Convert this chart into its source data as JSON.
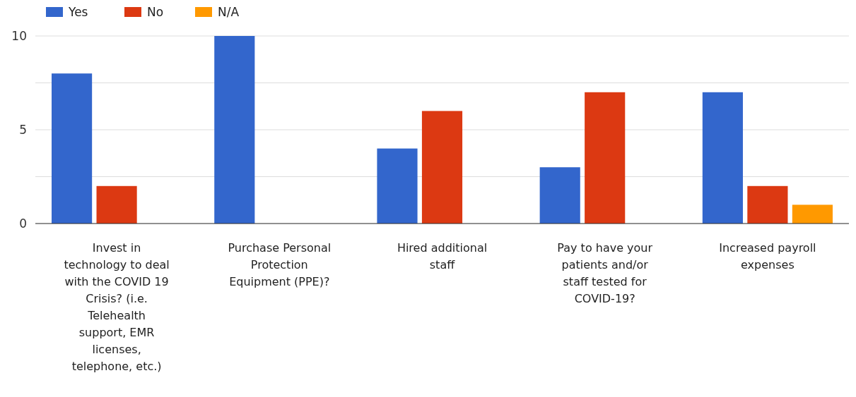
{
  "chart_data": {
    "type": "bar",
    "categories": [
      "Invest in technology to deal with the COVID 19 Crisis? (i.e. Telehealth support, EMR licenses, telephone, etc.)",
      "Purchase Personal Protection Equipment (PPE)?",
      "Hired additional staff",
      "Pay to have your patients and/or staff tested for COVID-19?",
      "Increased payroll expenses"
    ],
    "series": [
      {
        "name": "Yes",
        "color": "#3366cc",
        "values": [
          8,
          10,
          4,
          3,
          7
        ]
      },
      {
        "name": "No",
        "color": "#dc3912",
        "values": [
          2,
          0,
          6,
          7,
          2
        ]
      },
      {
        "name": "N/A",
        "color": "#ff9900",
        "values": [
          0,
          0,
          0,
          0,
          1
        ]
      }
    ],
    "ylim": [
      0,
      10
    ],
    "yticks": [
      0,
      {
        "value": 2.5,
        "label": null
      },
      5,
      {
        "value": 7.5,
        "label": null
      },
      10
    ],
    "grid": "y",
    "legend": "top left"
  }
}
